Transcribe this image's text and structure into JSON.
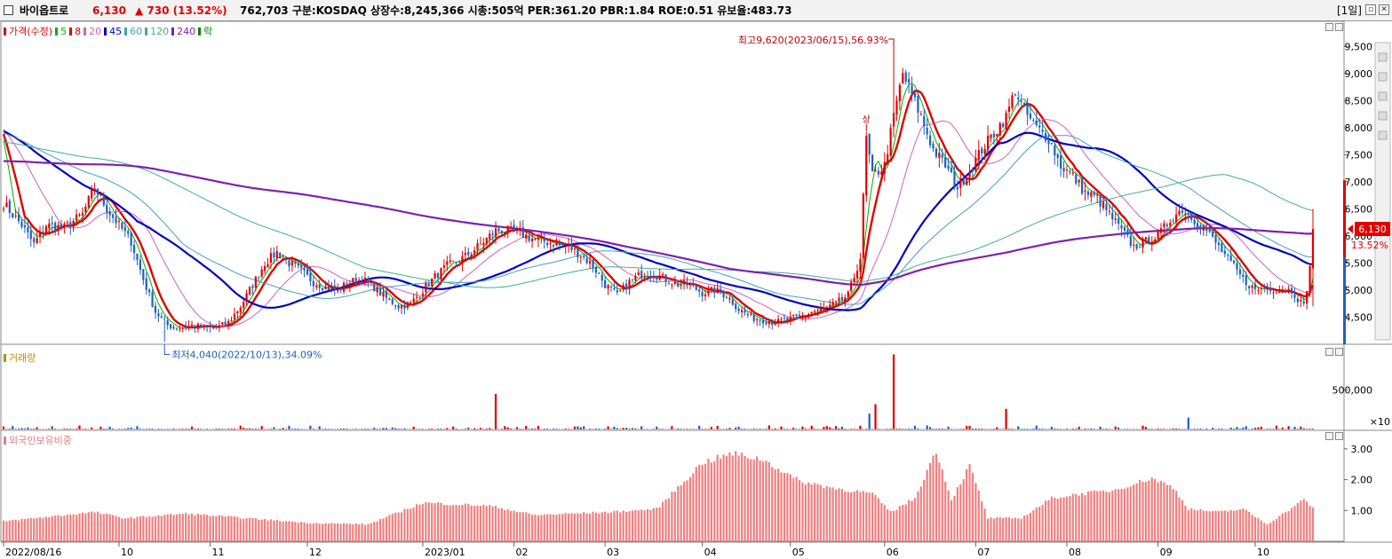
{
  "header": {
    "stock_name": "바이옵트로",
    "price": "6,130",
    "change": "▲ 730 (13.52%)",
    "info": "762,703  구분:KOSDAQ 상장수:8,245,366 시총:505억 PER:361.20 PBR:1.84 ROE:0.51 유보율:483.73",
    "period": "[1일]"
  },
  "price_pane": {
    "legend": [
      {
        "label": "가격(수정)",
        "color": "#e00000"
      },
      {
        "label": "5",
        "color": "#00b000"
      },
      {
        "label": "8",
        "color": "#e00000"
      },
      {
        "label": "20",
        "color": "#d060c0"
      },
      {
        "label": "45",
        "color": "#0000c0"
      },
      {
        "label": "60",
        "color": "#40a0c0"
      },
      {
        "label": "120",
        "color": "#40b090"
      },
      {
        "label": "240",
        "color": "#8020b0"
      },
      {
        "label": "락",
        "color": "#008000"
      }
    ],
    "high_annotation": "최고9,620(2023/06/15),56.93%",
    "low_annotation": "최저4,040(2022/10/13),34.09%",
    "limit_up_marker": "상",
    "current_price_tag": "6,130",
    "current_change_tag": "13.52%"
  },
  "volume_pane": {
    "title": "거래량",
    "tick_labels": [
      "500,000",
      "×10"
    ]
  },
  "foreign_pane": {
    "title": "외국인보유비중",
    "tick_labels": [
      "3.00",
      "2.00",
      "1.00"
    ]
  },
  "x_axis": {
    "labels": [
      "2022/08/16",
      "10",
      "11",
      "12",
      "2023/01",
      "02",
      "03",
      "04",
      "05",
      "06",
      "07",
      "08",
      "09",
      "10"
    ]
  },
  "chart_data": {
    "type": "candlestick",
    "title": "바이옵트로",
    "x_range": [
      "2022/08/16",
      "2023/10"
    ],
    "price_axis": {
      "ticks": [
        4500,
        5000,
        5500,
        6000,
        6500,
        7000,
        7500,
        8000,
        8500,
        9000,
        9500
      ],
      "range": [
        4000,
        9900
      ]
    },
    "high": {
      "value": 9620,
      "date": "2023/06/15"
    },
    "low": {
      "value": 4040,
      "date": "2022/10/13"
    },
    "last": {
      "value": 6130,
      "change": 730,
      "change_pct": 13.52
    },
    "close_keypoints": [
      [
        0,
        6600
      ],
      [
        6,
        6200
      ],
      [
        10,
        5850
      ],
      [
        14,
        6200
      ],
      [
        20,
        6150
      ],
      [
        26,
        6400
      ],
      [
        30,
        6900
      ],
      [
        34,
        6500
      ],
      [
        38,
        6200
      ],
      [
        42,
        5900
      ],
      [
        46,
        5200
      ],
      [
        50,
        4600
      ],
      [
        54,
        4350
      ],
      [
        58,
        4300
      ],
      [
        62,
        4350
      ],
      [
        66,
        4300
      ],
      [
        70,
        4300
      ],
      [
        74,
        4400
      ],
      [
        78,
        4700
      ],
      [
        82,
        5100
      ],
      [
        86,
        5500
      ],
      [
        90,
        5700
      ],
      [
        94,
        5500
      ],
      [
        98,
        5350
      ],
      [
        102,
        5150
      ],
      [
        106,
        5050
      ],
      [
        110,
        5000
      ],
      [
        114,
        5150
      ],
      [
        118,
        5200
      ],
      [
        122,
        5050
      ],
      [
        126,
        4850
      ],
      [
        130,
        4700
      ],
      [
        134,
        4750
      ],
      [
        138,
        5000
      ],
      [
        142,
        5250
      ],
      [
        146,
        5450
      ],
      [
        150,
        5550
      ],
      [
        154,
        5700
      ],
      [
        158,
        5900
      ],
      [
        162,
        6100
      ],
      [
        166,
        6100
      ],
      [
        170,
        6050
      ],
      [
        174,
        5950
      ],
      [
        178,
        5900
      ],
      [
        182,
        5850
      ],
      [
        186,
        5800
      ],
      [
        190,
        5650
      ],
      [
        194,
        5450
      ],
      [
        198,
        5100
      ],
      [
        202,
        4900
      ],
      [
        206,
        5150
      ],
      [
        210,
        5300
      ],
      [
        214,
        5300
      ],
      [
        218,
        5200
      ],
      [
        222,
        5100
      ],
      [
        226,
        5100
      ],
      [
        230,
        4950
      ],
      [
        234,
        5000
      ],
      [
        238,
        4900
      ],
      [
        242,
        4650
      ],
      [
        246,
        4500
      ],
      [
        250,
        4450
      ],
      [
        254,
        4400
      ],
      [
        258,
        4450
      ],
      [
        262,
        4500
      ],
      [
        266,
        4600
      ],
      [
        270,
        4650
      ],
      [
        274,
        4750
      ],
      [
        278,
        4900
      ],
      [
        282,
        5600
      ],
      [
        284,
        7800
      ],
      [
        286,
        7100
      ],
      [
        290,
        7300
      ],
      [
        293,
        8200
      ],
      [
        296,
        9000
      ],
      [
        299,
        8600
      ],
      [
        302,
        8200
      ],
      [
        306,
        7600
      ],
      [
        310,
        7300
      ],
      [
        314,
        6900
      ],
      [
        318,
        7200
      ],
      [
        322,
        7600
      ],
      [
        326,
        7900
      ],
      [
        330,
        8200
      ],
      [
        333,
        8700
      ],
      [
        336,
        8300
      ],
      [
        340,
        8000
      ],
      [
        344,
        7800
      ],
      [
        348,
        7300
      ],
      [
        352,
        7100
      ],
      [
        356,
        6800
      ],
      [
        360,
        6700
      ],
      [
        364,
        6400
      ],
      [
        368,
        6100
      ],
      [
        372,
        5800
      ],
      [
        376,
        5900
      ],
      [
        380,
        6000
      ],
      [
        384,
        6300
      ],
      [
        388,
        6500
      ],
      [
        392,
        6300
      ],
      [
        396,
        6100
      ],
      [
        400,
        5800
      ],
      [
        404,
        5500
      ],
      [
        408,
        5200
      ],
      [
        412,
        5000
      ],
      [
        416,
        5050
      ],
      [
        420,
        5000
      ],
      [
        424,
        5000
      ],
      [
        428,
        4700
      ],
      [
        430,
        5400
      ],
      [
        431,
        6130
      ]
    ],
    "series": [
      {
        "name": "가격(수정)",
        "type": "candlestick"
      },
      {
        "name": "5",
        "type": "moving_average",
        "period": 5
      },
      {
        "name": "8",
        "type": "moving_average",
        "period": 8
      },
      {
        "name": "20",
        "type": "moving_average",
        "period": 20
      },
      {
        "name": "45",
        "type": "moving_average",
        "period": 45
      },
      {
        "name": "60",
        "type": "moving_average",
        "period": 60
      },
      {
        "name": "120",
        "type": "moving_average",
        "period": 120
      },
      {
        "name": "240",
        "type": "moving_average",
        "period": 240
      }
    ],
    "volume": {
      "unit": "×10",
      "tick": 500000,
      "spikes": [
        [
          162,
          450000
        ],
        [
          285,
          200000
        ],
        [
          287,
          320000
        ],
        [
          293,
          950000
        ],
        [
          330,
          260000
        ],
        [
          390,
          150000
        ]
      ]
    },
    "foreign_ownership": {
      "ticks": [
        1.0,
        2.0,
        3.0
      ],
      "keypoints": [
        [
          0,
          0.65
        ],
        [
          30,
          0.95
        ],
        [
          40,
          0.75
        ],
        [
          60,
          0.9
        ],
        [
          80,
          0.75
        ],
        [
          100,
          0.6
        ],
        [
          120,
          0.55
        ],
        [
          138,
          1.25
        ],
        [
          160,
          1.15
        ],
        [
          175,
          0.85
        ],
        [
          200,
          0.95
        ],
        [
          215,
          1.05
        ],
        [
          230,
          2.55
        ],
        [
          240,
          2.85
        ],
        [
          250,
          2.65
        ],
        [
          262,
          1.95
        ],
        [
          275,
          1.7
        ],
        [
          286,
          1.55
        ],
        [
          292,
          0.95
        ],
        [
          300,
          1.4
        ],
        [
          307,
          2.95
        ],
        [
          312,
          1.35
        ],
        [
          318,
          2.45
        ],
        [
          324,
          0.75
        ],
        [
          335,
          0.75
        ],
        [
          345,
          1.4
        ],
        [
          355,
          1.55
        ],
        [
          365,
          1.65
        ],
        [
          378,
          2.05
        ],
        [
          385,
          1.75
        ],
        [
          390,
          1.05
        ],
        [
          400,
          0.95
        ],
        [
          408,
          1.05
        ],
        [
          416,
          0.55
        ],
        [
          428,
          1.35
        ],
        [
          431,
          1.1
        ]
      ]
    }
  }
}
